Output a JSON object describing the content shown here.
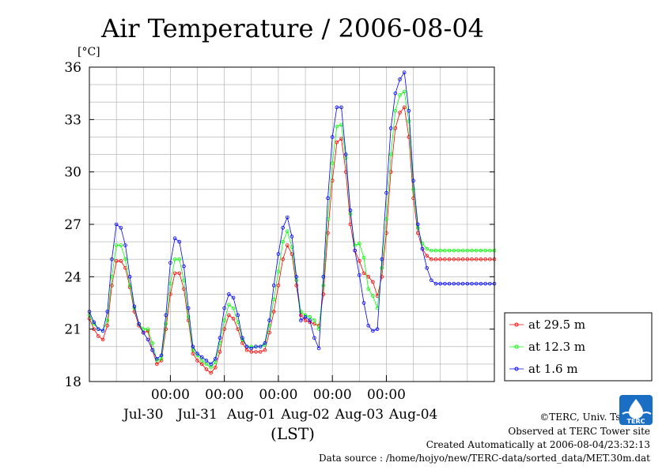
{
  "chart_data": {
    "type": "line",
    "title": "Air Temperature / 2006-08-04",
    "ylabel": "[°C]",
    "xlabel": "(LST)",
    "ylim": [
      18,
      36
    ],
    "yticks": [
      18,
      21,
      24,
      27,
      30,
      33,
      36
    ],
    "xlim_hours": [
      -36,
      144
    ],
    "grid": true,
    "xticks": [
      {
        "hour": 0,
        "time": "00:00",
        "date": "Jul-31"
      },
      {
        "hour": 24,
        "time": "00:00",
        "date": "Aug-01"
      },
      {
        "hour": 48,
        "time": "00:00",
        "date": "Aug-02"
      },
      {
        "hour": 72,
        "time": "00:00",
        "date": "Aug-03"
      },
      {
        "hour": 96,
        "time": "00:00",
        "date": "Aug-04"
      }
    ],
    "xdate_noon_labels": [
      {
        "hour": -12,
        "date": "Jul-30"
      },
      {
        "hour": 12,
        "date": "Jul-31"
      },
      {
        "hour": 36,
        "date": "Aug-01"
      },
      {
        "hour": 60,
        "date": "Aug-02"
      },
      {
        "hour": 84,
        "date": "Aug-03"
      },
      {
        "hour": 108,
        "date": "Aug-04"
      }
    ],
    "legend_position": "right",
    "series": [
      {
        "name": "at 29.5 m",
        "color": "#ff0000",
        "x": [
          -36,
          -34,
          -32,
          -30,
          -28,
          -26,
          -24,
          -22,
          -20,
          -18,
          -16,
          -14,
          -12,
          -10,
          -8,
          -6,
          -4,
          -2,
          0,
          2,
          4,
          6,
          8,
          10,
          12,
          14,
          16,
          18,
          20,
          22,
          24,
          26,
          28,
          30,
          32,
          34,
          36,
          38,
          40,
          42,
          44,
          46,
          48,
          50,
          52,
          54,
          56,
          58,
          60,
          62,
          64,
          66,
          68,
          70,
          72,
          74,
          76,
          78,
          80,
          82,
          84,
          86,
          88,
          90,
          92,
          94,
          96,
          98,
          100,
          102,
          104,
          106,
          108,
          110,
          112,
          114,
          116,
          118,
          120,
          122,
          124,
          126,
          128,
          130,
          132,
          134,
          136,
          138,
          140,
          142,
          144
        ],
        "values": [
          21.6,
          21.0,
          20.6,
          20.4,
          21.2,
          23.5,
          24.9,
          24.9,
          24.5,
          23.4,
          22.0,
          21.2,
          20.8,
          20.9,
          19.8,
          19.0,
          19.2,
          21.0,
          23.0,
          24.2,
          24.2,
          23.3,
          21.5,
          19.6,
          19.2,
          19.0,
          18.7,
          18.5,
          18.8,
          19.7,
          21.0,
          21.8,
          21.6,
          21.0,
          20.2,
          19.8,
          19.7,
          19.7,
          19.7,
          19.8,
          20.8,
          22.0,
          23.5,
          25.0,
          25.8,
          25.3,
          23.5,
          21.8,
          21.5,
          21.4,
          21.3,
          21.2,
          23.0,
          26.5,
          29.5,
          31.7,
          31.9,
          30.0,
          27.0,
          25.5,
          24.9,
          24.2,
          24.0,
          23.7,
          22.9,
          24.0,
          26.5,
          30.0,
          32.5,
          33.4,
          33.7,
          32.0,
          28.5,
          26.5,
          25.6,
          25.2,
          25.0,
          25.0,
          25.0,
          25.0,
          25.0,
          25.0,
          25.0,
          25.0,
          25.0,
          25.0,
          25.0,
          25.0,
          25.0,
          25.0,
          25.0
        ]
      },
      {
        "name": "at 12.3 m",
        "color": "#00ff00",
        "x": [
          -36,
          -34,
          -32,
          -30,
          -28,
          -26,
          -24,
          -22,
          -20,
          -18,
          -16,
          -14,
          -12,
          -10,
          -8,
          -6,
          -4,
          -2,
          0,
          2,
          4,
          6,
          8,
          10,
          12,
          14,
          16,
          18,
          20,
          22,
          24,
          26,
          28,
          30,
          32,
          34,
          36,
          38,
          40,
          42,
          44,
          46,
          48,
          50,
          52,
          54,
          56,
          58,
          60,
          62,
          64,
          66,
          68,
          70,
          72,
          74,
          76,
          78,
          80,
          82,
          84,
          86,
          88,
          90,
          92,
          94,
          96,
          98,
          100,
          102,
          104,
          106,
          108,
          110,
          112,
          114,
          116,
          118,
          120,
          122,
          124,
          126,
          128,
          130,
          132,
          134,
          136,
          138,
          140,
          142,
          144
        ],
        "values": [
          21.8,
          21.3,
          21.0,
          20.9,
          21.5,
          24.0,
          25.8,
          25.8,
          25.0,
          23.5,
          22.2,
          21.3,
          21.0,
          21.0,
          20.2,
          19.2,
          19.3,
          21.3,
          23.6,
          25.0,
          25.0,
          23.8,
          21.7,
          19.8,
          19.5,
          19.2,
          19.0,
          18.8,
          19.1,
          20.2,
          21.5,
          22.4,
          22.2,
          21.4,
          20.4,
          20.0,
          20.0,
          20.0,
          20.0,
          20.1,
          21.2,
          22.7,
          24.3,
          26.0,
          26.6,
          25.7,
          23.8,
          22.0,
          21.8,
          21.7,
          21.5,
          21.0,
          23.5,
          27.3,
          30.5,
          32.6,
          32.7,
          30.8,
          27.6,
          25.8,
          25.9,
          25.1,
          23.3,
          22.9,
          22.2,
          24.5,
          27.3,
          31.0,
          33.5,
          34.4,
          34.6,
          32.9,
          29.0,
          26.8,
          25.9,
          25.6,
          25.5,
          25.5,
          25.5,
          25.5,
          25.5,
          25.5,
          25.5,
          25.5,
          25.5,
          25.5,
          25.5,
          25.5,
          25.5,
          25.5,
          25.5
        ]
      },
      {
        "name": "at 1.6 m",
        "color": "#0000ff",
        "x": [
          -36,
          -34,
          -32,
          -30,
          -28,
          -26,
          -24,
          -22,
          -20,
          -18,
          -16,
          -14,
          -12,
          -10,
          -8,
          -6,
          -4,
          -2,
          0,
          2,
          4,
          6,
          8,
          10,
          12,
          14,
          16,
          18,
          20,
          22,
          24,
          26,
          28,
          30,
          32,
          34,
          36,
          38,
          40,
          42,
          44,
          46,
          48,
          50,
          52,
          54,
          56,
          58,
          60,
          62,
          64,
          66,
          68,
          70,
          72,
          74,
          76,
          78,
          80,
          82,
          84,
          86,
          88,
          90,
          92,
          94,
          96,
          98,
          100,
          102,
          104,
          106,
          108,
          110,
          112,
          114,
          116,
          118,
          120,
          122,
          124,
          126,
          128,
          130,
          132,
          134,
          136,
          138,
          140,
          142,
          144
        ],
        "values": [
          22.0,
          21.4,
          21.0,
          20.9,
          22.0,
          25.0,
          27.0,
          26.8,
          25.8,
          24.0,
          22.3,
          21.3,
          20.8,
          20.4,
          19.8,
          19.3,
          19.5,
          21.8,
          24.8,
          26.2,
          26.0,
          24.6,
          22.2,
          20.0,
          19.6,
          19.4,
          19.2,
          19.0,
          19.3,
          20.5,
          22.2,
          23.0,
          22.8,
          21.8,
          20.5,
          20.0,
          19.9,
          20.0,
          20.0,
          20.2,
          21.5,
          23.5,
          25.3,
          26.8,
          27.4,
          26.3,
          24.0,
          21.5,
          21.7,
          21.5,
          20.5,
          19.9,
          24.0,
          28.5,
          32.0,
          33.7,
          33.7,
          31.0,
          27.8,
          25.5,
          24.1,
          22.5,
          21.2,
          20.9,
          21.0,
          25.0,
          28.8,
          32.5,
          34.5,
          35.3,
          35.7,
          33.5,
          29.5,
          27.0,
          25.6,
          24.5,
          23.8,
          23.6,
          23.6,
          23.6,
          23.6,
          23.6,
          23.6,
          23.6,
          23.6,
          23.6,
          23.6,
          23.6,
          23.6,
          23.6,
          23.6
        ]
      }
    ]
  },
  "credits": {
    "copyright": "©TERC, Univ. Tsukuba",
    "observed": "Observed at TERC Tower site",
    "created": "Created Automatically at 2006-08-04/23:32:13",
    "source": "Data source : /home/hojyo/new/TERC-data/sorted_data/MET.30m.dat"
  },
  "logo_text": "TERC"
}
